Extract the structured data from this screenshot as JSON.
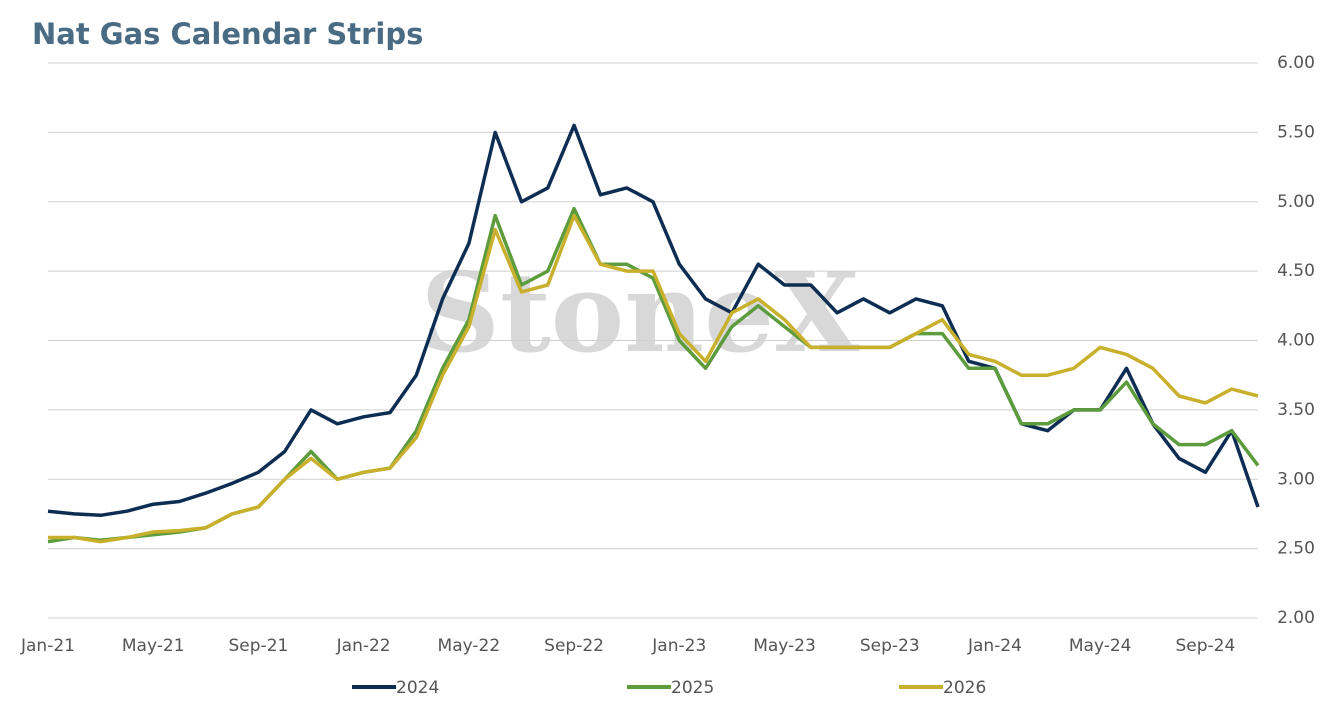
{
  "chart_data": {
    "type": "line",
    "title": "Nat Gas Calendar Strips",
    "watermark": "StoneX",
    "categories": [
      "Jan-21",
      null,
      null,
      null,
      "May-21",
      null,
      null,
      null,
      "Sep-21",
      null,
      null,
      null,
      "Jan-22",
      null,
      null,
      null,
      "May-22",
      null,
      null,
      null,
      "Sep-22",
      null,
      null,
      null,
      "Jan-23",
      null,
      null,
      null,
      "May-23",
      null,
      null,
      null,
      "Sep-23",
      null,
      null,
      null,
      "Jan-24",
      null,
      null,
      null,
      "May-24",
      null,
      null,
      null,
      "Sep-24",
      null,
      null
    ],
    "series": [
      {
        "name": "2024",
        "color": "#0d2d52",
        "values": [
          2.77,
          2.75,
          2.74,
          2.77,
          2.82,
          2.84,
          2.9,
          2.97,
          3.05,
          3.2,
          3.5,
          3.4,
          3.45,
          3.48,
          3.75,
          4.3,
          4.7,
          5.5,
          5.0,
          5.1,
          5.55,
          5.05,
          5.1,
          5.0,
          4.55,
          4.3,
          4.2,
          4.55,
          4.4,
          4.4,
          4.2,
          4.3,
          4.2,
          4.3,
          4.25,
          3.85,
          3.8,
          3.4,
          3.35,
          3.5,
          3.5,
          3.8,
          3.4,
          3.15,
          3.05,
          3.35,
          2.8
        ]
      },
      {
        "name": "2025",
        "color": "#5c9c3c",
        "values": [
          2.55,
          2.58,
          2.56,
          2.58,
          2.6,
          2.62,
          2.65,
          2.75,
          2.8,
          3.0,
          3.2,
          3.0,
          3.05,
          3.08,
          3.35,
          3.8,
          4.15,
          4.9,
          4.4,
          4.5,
          4.95,
          4.55,
          4.55,
          4.45,
          4.0,
          3.8,
          4.1,
          4.25,
          4.1,
          3.95,
          3.95,
          3.95,
          3.95,
          4.05,
          4.05,
          3.8,
          3.8,
          3.4,
          3.4,
          3.5,
          3.5,
          3.7,
          3.4,
          3.25,
          3.25,
          3.35,
          3.1
        ]
      },
      {
        "name": "2026",
        "color": "#c8b02c",
        "values": [
          2.58,
          2.58,
          2.55,
          2.58,
          2.62,
          2.63,
          2.65,
          2.75,
          2.8,
          3.0,
          3.15,
          3.0,
          3.05,
          3.08,
          3.3,
          3.75,
          4.1,
          4.8,
          4.35,
          4.4,
          4.9,
          4.55,
          4.5,
          4.5,
          4.05,
          3.85,
          4.2,
          4.3,
          4.15,
          3.95,
          3.95,
          3.95,
          3.95,
          4.05,
          4.15,
          3.9,
          3.85,
          3.75,
          3.75,
          3.8,
          3.95,
          3.9,
          3.8,
          3.6,
          3.55,
          3.65,
          3.6
        ]
      }
    ],
    "ylim": [
      2,
      6
    ],
    "yticks": [
      {
        "value": 2,
        "label": "2.00"
      },
      {
        "value": 2.5,
        "label": "2.50"
      },
      {
        "value": 3,
        "label": "3.00"
      },
      {
        "value": 3.5,
        "label": "3.50"
      },
      {
        "value": 4,
        "label": "4.00"
      },
      {
        "value": 4.5,
        "label": "4.50"
      },
      {
        "value": 5,
        "label": "5.00"
      },
      {
        "value": 5.5,
        "label": "5.50"
      },
      {
        "value": 6,
        "label": "6.00"
      }
    ],
    "grid": true,
    "legend": "bottom"
  }
}
